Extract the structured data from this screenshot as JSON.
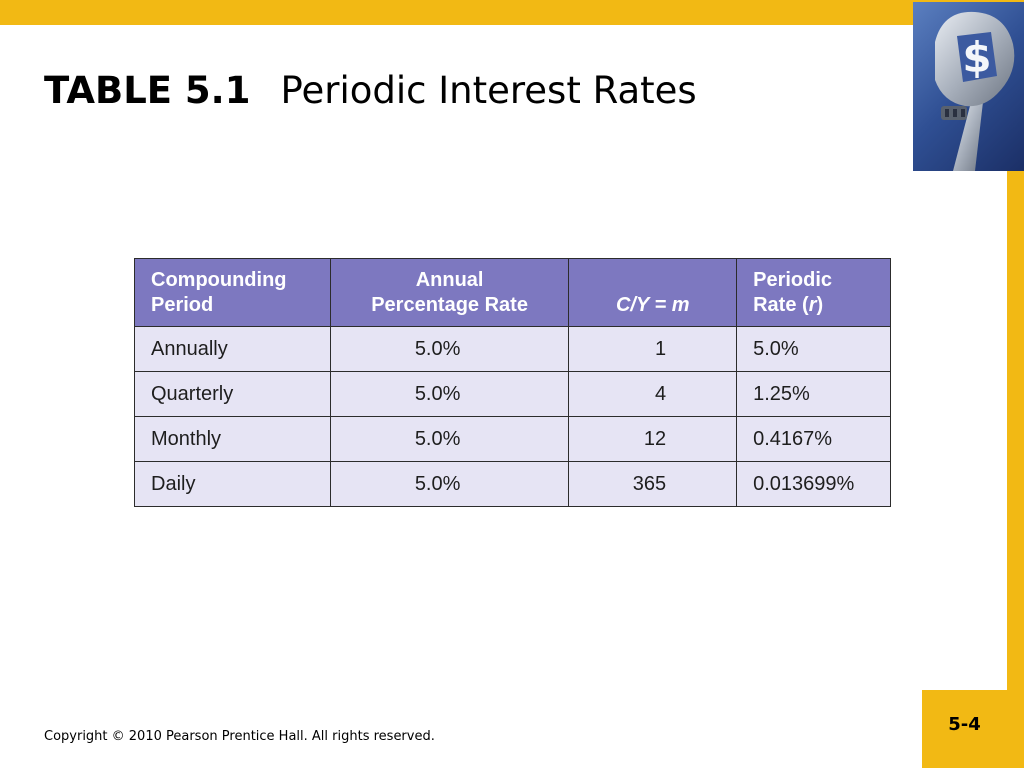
{
  "title": {
    "bold": "TABLE 5.1",
    "text": "Periodic Interest Rates"
  },
  "table": {
    "headers": [
      {
        "line1": "Compounding",
        "line2": "Period"
      },
      {
        "line1": "Annual",
        "line2": "Percentage Rate"
      },
      {
        "line1": "",
        "line2": "C/Y =  m"
      },
      {
        "line1": "Periodic",
        "line2_prefix": "Rate (",
        "line2_var": "r",
        "line2_suffix": ")"
      }
    ],
    "rows": [
      {
        "period": "Annually",
        "apr": "5.0%",
        "m": "1",
        "rate": "5.0%"
      },
      {
        "period": "Quarterly",
        "apr": "5.0%",
        "m": "4",
        "rate": "1.25%"
      },
      {
        "period": "Monthly",
        "apr": "5.0%",
        "m": "12",
        "rate": "0.4167%"
      },
      {
        "period": "Daily",
        "apr": "5.0%",
        "m": "365",
        "rate": "0.013699%"
      }
    ]
  },
  "footer": {
    "copyright": "Copyright © 2010 Pearson Prentice Hall. All rights reserved.",
    "slide_number": "5-4"
  },
  "colors": {
    "accent_yellow": "#f2b914",
    "header_purple": "#7d78c0",
    "cell_lavender": "#e6e4f4"
  },
  "icons": {
    "corner_image": "wrench-dollar-icon"
  }
}
